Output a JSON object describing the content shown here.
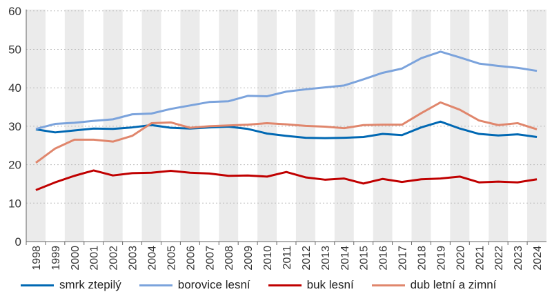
{
  "chart_data": {
    "type": "line",
    "x": [
      1998,
      1999,
      2000,
      2001,
      2002,
      2003,
      2004,
      2005,
      2006,
      2007,
      2008,
      2009,
      2010,
      2011,
      2012,
      2013,
      2014,
      2015,
      2016,
      2017,
      2018,
      2019,
      2020,
      2021,
      2022,
      2023,
      2024
    ],
    "ylim": [
      0,
      60
    ],
    "yticks": [
      0,
      10,
      20,
      30,
      40,
      50,
      60
    ],
    "grid": "horizontal dotted, alternating gray year bands",
    "legend": "bottom",
    "series": [
      {
        "name": "smrk ztepilý",
        "color": "#0068b3",
        "values": [
          29.2,
          28.4,
          28.9,
          29.4,
          29.3,
          29.7,
          30.3,
          29.6,
          29.4,
          29.7,
          29.9,
          29.3,
          28.1,
          27.5,
          27.0,
          26.9,
          27.0,
          27.2,
          28.0,
          27.7,
          29.7,
          31.2,
          29.4,
          28.0,
          27.6,
          27.9,
          27.2
        ]
      },
      {
        "name": "borovice lesní",
        "color": "#7ba3dc",
        "values": [
          29.3,
          30.6,
          30.9,
          31.4,
          31.8,
          33.1,
          33.3,
          34.5,
          35.4,
          36.3,
          36.5,
          37.9,
          37.8,
          39.0,
          39.6,
          40.1,
          40.6,
          42.2,
          43.9,
          45.0,
          47.7,
          49.4,
          47.9,
          46.3,
          45.7,
          45.2,
          44.4
        ]
      },
      {
        "name": "buk lesní",
        "color": "#c00000",
        "values": [
          13.4,
          15.4,
          17.1,
          18.5,
          17.2,
          17.8,
          17.9,
          18.4,
          17.9,
          17.7,
          17.1,
          17.2,
          16.9,
          18.1,
          16.7,
          16.1,
          16.4,
          15.1,
          16.3,
          15.5,
          16.2,
          16.4,
          16.9,
          15.4,
          15.6,
          15.4,
          16.2
        ]
      },
      {
        "name": "dub letní a zimní",
        "color": "#e0866c",
        "values": [
          20.5,
          24.2,
          26.5,
          26.5,
          26.0,
          27.5,
          30.8,
          31.0,
          29.6,
          30.0,
          30.2,
          30.4,
          30.8,
          30.5,
          30.1,
          29.9,
          29.5,
          30.3,
          30.4,
          30.4,
          33.4,
          36.2,
          34.3,
          31.5,
          30.3,
          30.8,
          29.2
        ]
      }
    ]
  }
}
